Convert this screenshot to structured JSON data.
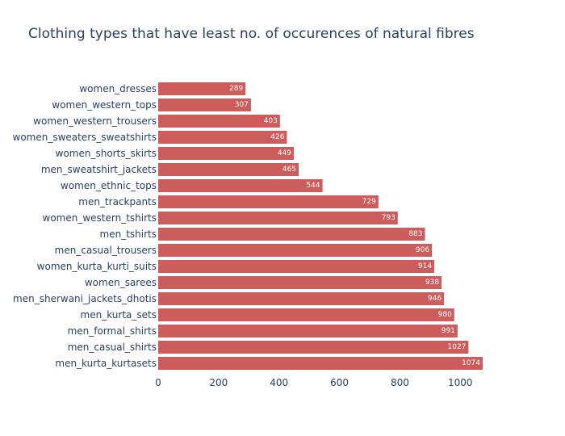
{
  "chart_data": {
    "type": "bar",
    "orientation": "horizontal",
    "title": "Clothing types that have least no. of occurences of natural fibres",
    "xlabel": "",
    "ylabel": "",
    "categories": [
      "women_dresses",
      "women_western_tops",
      "women_western_trousers",
      "women_sweaters_sweatshirts",
      "women_shorts_skirts",
      "men_sweatshirt_jackets",
      "women_ethnic_tops",
      "men_trackpants",
      "women_western_tshirts",
      "men_tshirts",
      "men_casual_trousers",
      "women_kurta_kurti_suits",
      "women_sarees",
      "men_sherwani_jackets_dhotis",
      "men_kurta_sets",
      "men_formal_shirts",
      "men_casual_shirts",
      "men_kurta_kurtasets"
    ],
    "values": [
      289,
      307,
      403,
      426,
      449,
      465,
      544,
      729,
      793,
      883,
      906,
      914,
      938,
      946,
      980,
      991,
      1027,
      1074
    ],
    "xlim": [
      0,
      1074
    ],
    "x_ticks": [
      0,
      200,
      400,
      600,
      800,
      1000
    ],
    "bar_color": "#cd5c5c",
    "data_label_color": "#ffffff",
    "text_color": "#2a3f5f",
    "grid": false,
    "legend": "none"
  }
}
